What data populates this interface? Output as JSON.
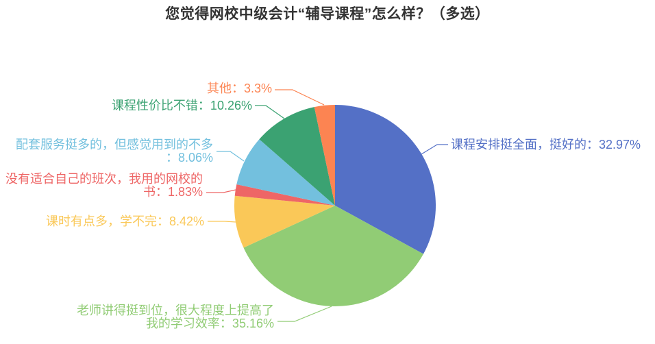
{
  "title": "您觉得网校中级会计“辅导课程”怎么样？（多选）",
  "chart_data": {
    "type": "pie",
    "title": "您觉得网校中级会计“辅导课程”怎么样？（多选）",
    "unit": "%",
    "legend": "none",
    "label_style": "outside leader lines, label text colored same as slice",
    "start_angle": "12 o'clock, clockwise",
    "slices": [
      {
        "name": "课程安排挺全面，挺好的",
        "value": 32.97,
        "color": "#5470C6",
        "label_lines": [
          "课程安排挺全面，挺好的：32.97%"
        ]
      },
      {
        "name": "老师讲得挺到位，很大程度上提高了我的学习效率",
        "value": 35.16,
        "color": "#91CC75",
        "label_lines": [
          "老师讲得挺到位，很大程度上提高了",
          "我的学习效率：35.16%"
        ]
      },
      {
        "name": "课时有点多，学不完",
        "value": 8.42,
        "color": "#FAC858",
        "label_lines": [
          "课时有点多，学不完：8.42%"
        ]
      },
      {
        "name": "没有适合自己的班次，我用的网校的书",
        "value": 1.83,
        "color": "#EE6666",
        "label_lines": [
          "没有适合自己的班次，我用的网校的",
          "书：1.83%"
        ]
      },
      {
        "name": "配套服务挺多的，但感觉用到的不多",
        "value": 8.06,
        "color": "#73C0DE",
        "label_lines": [
          "配套服务挺多的，但感觉用到的不多",
          "：8.06%"
        ]
      },
      {
        "name": "课程性价比不错",
        "value": 10.26,
        "color": "#3BA272",
        "label_lines": [
          "课程性价比不错：10.26%"
        ]
      },
      {
        "name": "其他",
        "value": 3.3,
        "color": "#FC8452",
        "label_lines": [
          "其他：3.3%"
        ]
      }
    ]
  }
}
